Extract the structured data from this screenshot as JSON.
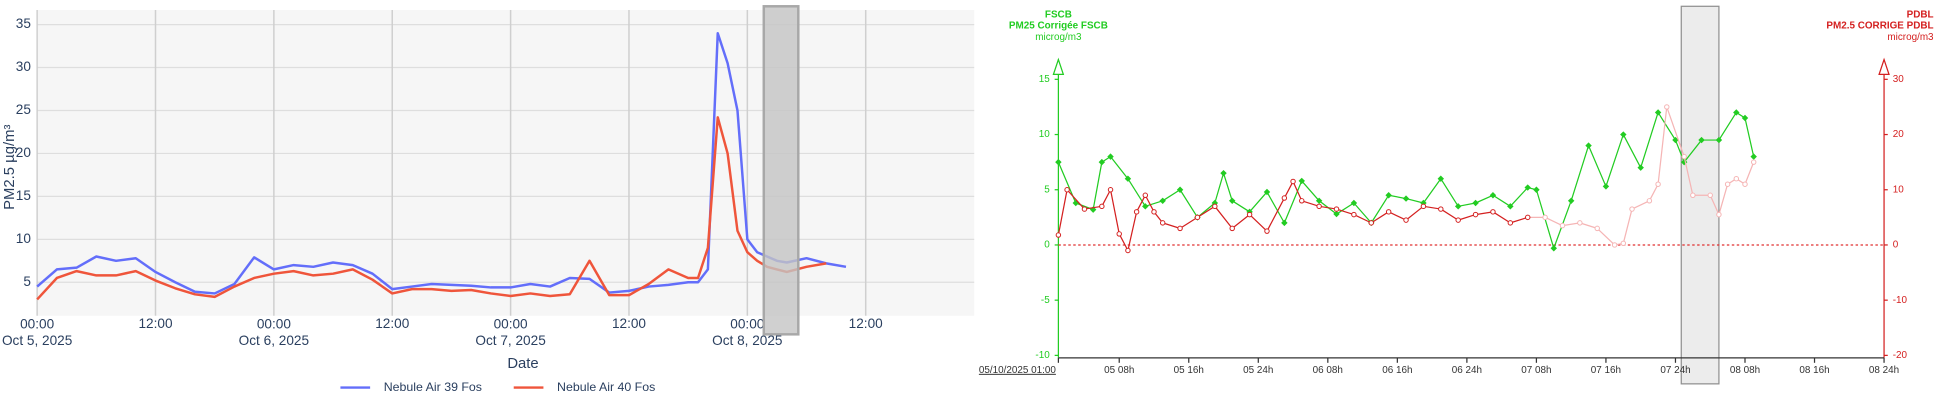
{
  "chart_data": [
    {
      "type": "line",
      "xlabel": "Date",
      "ylabel": "PM2.5 µg/m³",
      "xlim": [
        "2025-10-05T00:00",
        "2025-10-08T23:00"
      ],
      "ylim": [
        1.1,
        36.7
      ],
      "yticks": [
        5,
        10,
        15,
        20,
        25,
        30,
        35
      ],
      "xticks": [
        {
          "value": "2025-10-05T00:00",
          "label": "00:00\nOct 5, 2025"
        },
        {
          "value": "2025-10-05T12:00",
          "label": "12:00"
        },
        {
          "value": "2025-10-06T00:00",
          "label": "00:00\nOct 6, 2025"
        },
        {
          "value": "2025-10-06T12:00",
          "label": "12:00"
        },
        {
          "value": "2025-10-07T00:00",
          "label": "00:00\nOct 7, 2025"
        },
        {
          "value": "2025-10-07T12:00",
          "label": "12:00"
        },
        {
          "value": "2025-10-08T00:00",
          "label": "00:00\nOct 8, 2025"
        },
        {
          "value": "2025-10-08T12:00",
          "label": "12:00"
        }
      ],
      "grid": true,
      "legend": "bottom",
      "shaded": [
        "2025-10-08T01:40",
        "2025-10-08T05:10"
      ],
      "x": [
        "2025-10-05T00:00",
        "2025-10-05T02:00",
        "2025-10-05T04:00",
        "2025-10-05T06:00",
        "2025-10-05T08:00",
        "2025-10-05T10:00",
        "2025-10-05T12:00",
        "2025-10-05T14:00",
        "2025-10-05T16:00",
        "2025-10-05T18:00",
        "2025-10-05T20:00",
        "2025-10-05T22:00",
        "2025-10-06T00:00",
        "2025-10-06T02:00",
        "2025-10-06T04:00",
        "2025-10-06T06:00",
        "2025-10-06T08:00",
        "2025-10-06T10:00",
        "2025-10-06T12:00",
        "2025-10-06T14:00",
        "2025-10-06T16:00",
        "2025-10-06T18:00",
        "2025-10-06T20:00",
        "2025-10-06T22:00",
        "2025-10-07T00:00",
        "2025-10-07T02:00",
        "2025-10-07T04:00",
        "2025-10-07T06:00",
        "2025-10-07T08:00",
        "2025-10-07T10:00",
        "2025-10-07T12:00",
        "2025-10-07T14:00",
        "2025-10-07T16:00",
        "2025-10-07T18:00",
        "2025-10-07T19:00",
        "2025-10-07T20:00",
        "2025-10-07T21:00",
        "2025-10-07T22:00",
        "2025-10-07T23:00",
        "2025-10-08T00:00",
        "2025-10-08T01:00",
        "2025-10-08T02:00",
        "2025-10-08T03:00",
        "2025-10-08T04:00",
        "2025-10-08T06:00",
        "2025-10-08T08:00",
        "2025-10-08T10:00"
      ],
      "series": [
        {
          "name": "Nebule Air 39 Fos",
          "color": "#636efa",
          "values": [
            4.5,
            6.5,
            6.7,
            8.0,
            7.5,
            7.8,
            6.2,
            5.0,
            3.9,
            3.7,
            4.8,
            7.9,
            6.5,
            7.0,
            6.8,
            7.3,
            7.0,
            6.0,
            4.2,
            4.5,
            4.8,
            4.7,
            4.6,
            4.4,
            4.4,
            4.8,
            4.5,
            5.5,
            5.4,
            3.8,
            4.0,
            4.5,
            4.7,
            5.0,
            5.0,
            6.5,
            34.0,
            30.5,
            25.0,
            10.0,
            8.5,
            8.0,
            7.5,
            7.3,
            7.8,
            7.2,
            6.8
          ]
        },
        {
          "name": "Nebule Air 40 Fos",
          "color": "#ef553b",
          "values": [
            3.0,
            5.5,
            6.3,
            5.8,
            5.8,
            6.3,
            5.2,
            4.3,
            3.6,
            3.3,
            4.5,
            5.5,
            6.0,
            6.3,
            5.8,
            6.0,
            6.5,
            5.3,
            3.7,
            4.2,
            4.2,
            4.0,
            4.1,
            3.7,
            3.4,
            3.7,
            3.4,
            3.6,
            7.5,
            3.5,
            3.5,
            4.8,
            6.5,
            5.5,
            5.5,
            9.0,
            24.2,
            20.0,
            11.0,
            8.5,
            7.5,
            6.8,
            6.5,
            6.2,
            6.8,
            7.2,
            null
          ]
        }
      ]
    },
    {
      "type": "line",
      "xlim": [
        "2025-10-05T01:00",
        "2025-10-09T00:00"
      ],
      "ylim": [
        -10,
        15
      ],
      "y2lim": [
        -20,
        30
      ],
      "yticks": [
        15,
        10,
        5,
        0,
        -5,
        -10
      ],
      "y2ticks": [
        30,
        20,
        10,
        0,
        -10,
        -20
      ],
      "xticks": [
        {
          "value": "2025-10-05T01:00",
          "label": "05/10/2025 01:00"
        },
        {
          "value": "2025-10-05T08:00",
          "label": "05 08h"
        },
        {
          "value": "2025-10-05T16:00",
          "label": "05 16h"
        },
        {
          "value": "2025-10-06T00:00",
          "label": "05 24h"
        },
        {
          "value": "2025-10-06T08:00",
          "label": "06 08h"
        },
        {
          "value": "2025-10-06T16:00",
          "label": "06 16h"
        },
        {
          "value": "2025-10-07T00:00",
          "label": "06 24h"
        },
        {
          "value": "2025-10-07T08:00",
          "label": "07 08h"
        },
        {
          "value": "2025-10-07T16:00",
          "label": "07 16h"
        },
        {
          "value": "2025-10-08T00:00",
          "label": "07 24h"
        },
        {
          "value": "2025-10-08T08:00",
          "label": "08 08h"
        },
        {
          "value": "2025-10-08T16:00",
          "label": "08 16h"
        },
        {
          "value": "2025-10-09T00:00",
          "label": "08 24h"
        }
      ],
      "shaded": [
        "2025-10-08T00:40",
        "2025-10-08T05:00"
      ],
      "hline": {
        "value": 0,
        "axis": "y2",
        "color": "#e03030"
      },
      "series": [
        {
          "name": "PM25 Corrigée FSCB",
          "group": "FSCB",
          "unit": "microg/m3",
          "color": "#22cc22",
          "marker": "diamond",
          "x": [
            "2025-10-05T01:00",
            "2025-10-05T03:00",
            "2025-10-05T05:00",
            "2025-10-05T06:00",
            "2025-10-05T07:00",
            "2025-10-05T09:00",
            "2025-10-05T11:00",
            "2025-10-05T13:00",
            "2025-10-05T15:00",
            "2025-10-05T17:00",
            "2025-10-05T19:00",
            "2025-10-05T20:00",
            "2025-10-05T21:00",
            "2025-10-05T23:00",
            "2025-10-06T01:00",
            "2025-10-06T03:00",
            "2025-10-06T05:00",
            "2025-10-06T07:00",
            "2025-10-06T09:00",
            "2025-10-06T11:00",
            "2025-10-06T13:00",
            "2025-10-06T15:00",
            "2025-10-06T17:00",
            "2025-10-06T19:00",
            "2025-10-06T21:00",
            "2025-10-06T23:00",
            "2025-10-07T01:00",
            "2025-10-07T03:00",
            "2025-10-07T05:00",
            "2025-10-07T07:00",
            "2025-10-07T08:00",
            "2025-10-07T10:00",
            "2025-10-07T12:00",
            "2025-10-07T14:00",
            "2025-10-07T16:00",
            "2025-10-07T18:00",
            "2025-10-07T20:00",
            "2025-10-07T22:00",
            "2025-10-08T00:00",
            "2025-10-08T01:00",
            "2025-10-08T03:00",
            "2025-10-08T05:00",
            "2025-10-08T07:00",
            "2025-10-08T08:00",
            "2025-10-08T09:00"
          ],
          "values": [
            7.5,
            3.8,
            3.2,
            7.5,
            8.0,
            6.0,
            3.5,
            4.0,
            5.0,
            2.5,
            3.8,
            6.5,
            4.0,
            3.0,
            4.8,
            2.0,
            5.8,
            4.0,
            2.8,
            3.8,
            2.0,
            4.5,
            4.2,
            3.8,
            6.0,
            3.5,
            3.8,
            4.5,
            3.5,
            5.2,
            5.0,
            -0.3,
            4.0,
            9.0,
            5.3,
            10.0,
            7.0,
            12.0,
            9.5,
            7.5,
            9.5,
            9.5,
            12.0,
            11.5,
            8.0
          ]
        },
        {
          "name": "PM2.5 CORRIGE PDBL",
          "group": "PDBL",
          "unit": "microg/m3",
          "color": "#d42020",
          "faded_color": "#f5b5b5",
          "faded_from": "2025-10-07T09:00",
          "marker": "circle",
          "axis": "y2",
          "x": [
            "2025-10-05T01:00",
            "2025-10-05T02:00",
            "2025-10-05T04:00",
            "2025-10-05T06:00",
            "2025-10-05T07:00",
            "2025-10-05T08:00",
            "2025-10-05T09:00",
            "2025-10-05T10:00",
            "2025-10-05T11:00",
            "2025-10-05T12:00",
            "2025-10-05T13:00",
            "2025-10-05T15:00",
            "2025-10-05T17:00",
            "2025-10-05T19:00",
            "2025-10-05T21:00",
            "2025-10-05T23:00",
            "2025-10-06T01:00",
            "2025-10-06T03:00",
            "2025-10-06T04:00",
            "2025-10-06T05:00",
            "2025-10-06T07:00",
            "2025-10-06T09:00",
            "2025-10-06T11:00",
            "2025-10-06T13:00",
            "2025-10-06T15:00",
            "2025-10-06T17:00",
            "2025-10-06T19:00",
            "2025-10-06T21:00",
            "2025-10-06T23:00",
            "2025-10-07T01:00",
            "2025-10-07T03:00",
            "2025-10-07T05:00",
            "2025-10-07T07:00",
            "2025-10-07T09:00",
            "2025-10-07T11:00",
            "2025-10-07T13:00",
            "2025-10-07T15:00",
            "2025-10-07T17:00",
            "2025-10-07T18:00",
            "2025-10-07T19:00",
            "2025-10-07T21:00",
            "2025-10-07T22:00",
            "2025-10-07T23:00",
            "2025-10-08T01:00",
            "2025-10-08T02:00",
            "2025-10-08T04:00",
            "2025-10-08T05:00",
            "2025-10-08T06:00",
            "2025-10-08T07:00",
            "2025-10-08T08:00",
            "2025-10-08T09:00"
          ],
          "values": [
            1.8,
            10,
            6.5,
            7,
            10,
            2,
            -1,
            6,
            9,
            6,
            4,
            3,
            5,
            7,
            3,
            5.5,
            2.5,
            8.5,
            11.5,
            8,
            7,
            6.5,
            5.5,
            4,
            6,
            4.5,
            7,
            6.5,
            4.5,
            5.5,
            6,
            4,
            5,
            5,
            3.5,
            4,
            3,
            0,
            0.3,
            6.5,
            8,
            11,
            25,
            16,
            9,
            9,
            5.5,
            11,
            12,
            11,
            15
          ]
        }
      ]
    }
  ]
}
